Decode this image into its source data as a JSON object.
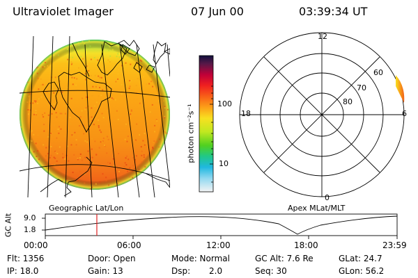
{
  "header": {
    "instrument": "Ultraviolet Imager",
    "date": "07 Jun 00",
    "time": "03:39:34 UT"
  },
  "colorbar": {
    "unit_label": "photon cm⁻²s⁻¹",
    "ticks": [
      "100",
      "10"
    ]
  },
  "left_panel": {
    "caption": "Geographic Lat/Lon"
  },
  "right_panel": {
    "caption": "Apex MLat/MLT",
    "mlt_labels": [
      "12",
      "18",
      "6",
      "0"
    ],
    "lat_labels": [
      "60",
      "70",
      "80"
    ]
  },
  "altitude_plot": {
    "ylabel": "GC Alt",
    "yticks": [
      "9.0",
      "1.8"
    ],
    "xticks": [
      "00:00",
      "06:00",
      "12:00",
      "18:00",
      "23:59"
    ]
  },
  "status": {
    "flt": "Flt: 1356",
    "ip": "IP: 18.0",
    "door": "Door: Open",
    "gain": "Gain: 13",
    "mode": "Mode: Normal",
    "dsp_label": "Dsp:",
    "dsp_value": "2.0",
    "gc_alt": "GC Alt: 7.6 Re",
    "seq": "Seq: 30",
    "glat": "GLat:  24.7",
    "glon": "GLon:  56.2"
  }
}
